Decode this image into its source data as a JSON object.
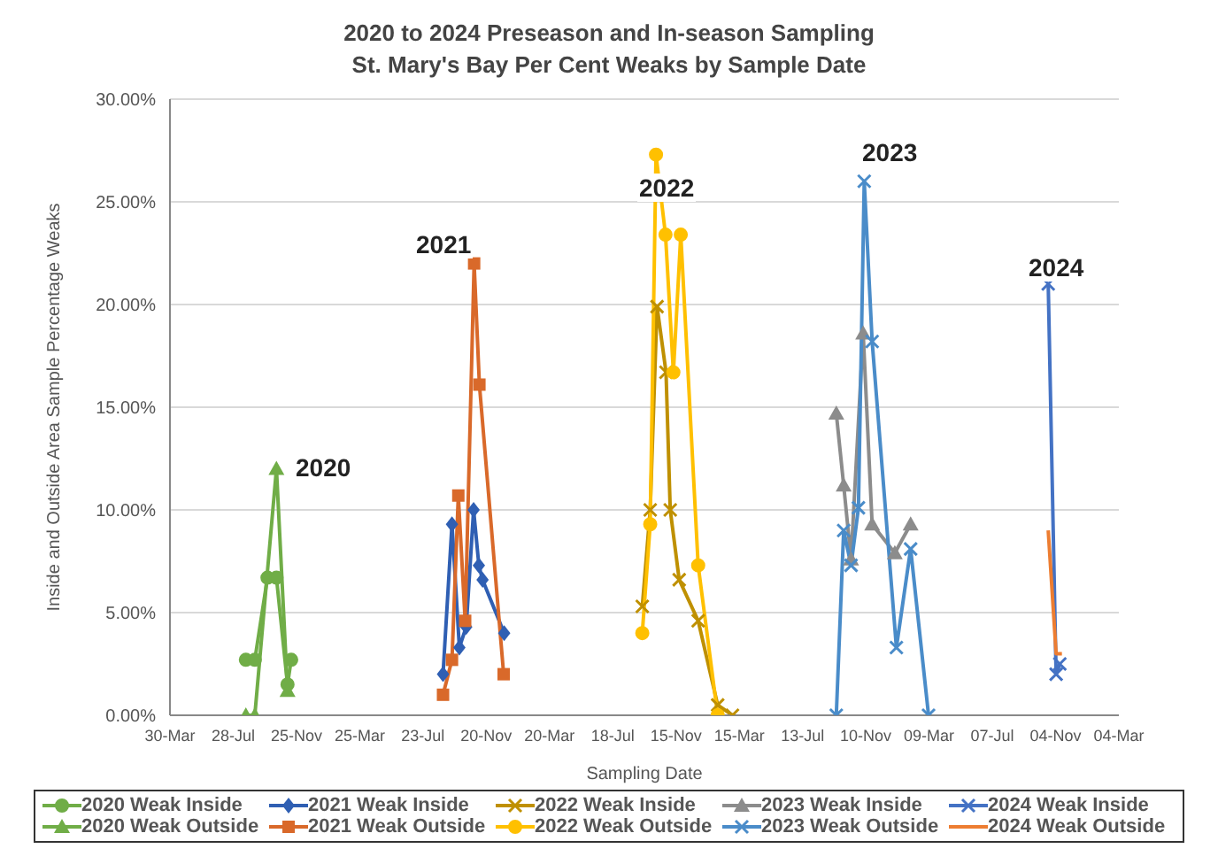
{
  "chart_data": {
    "type": "line",
    "title": "2020 to 2024 Preseason and In-season Sampling",
    "subtitle": "St. Mary's Bay Per Cent Weaks by Sample Date",
    "xlabel": "Sampling Date",
    "ylabel": "Inside and Outside Area Sample Percentage Weaks",
    "xlim": [
      "2020-03-30",
      "2025-03-04"
    ],
    "xticks": [
      {
        "value": "2020-03-30",
        "label": "30-Mar"
      },
      {
        "value": "2020-07-28",
        "label": "28-Jul"
      },
      {
        "value": "2020-11-25",
        "label": "25-Nov"
      },
      {
        "value": "2021-03-25",
        "label": "25-Mar"
      },
      {
        "value": "2021-07-23",
        "label": "23-Jul"
      },
      {
        "value": "2021-11-20",
        "label": "20-Nov"
      },
      {
        "value": "2022-03-20",
        "label": "20-Mar"
      },
      {
        "value": "2022-07-18",
        "label": "18-Jul"
      },
      {
        "value": "2022-11-15",
        "label": "15-Nov"
      },
      {
        "value": "2023-03-15",
        "label": "15-Mar"
      },
      {
        "value": "2023-07-13",
        "label": "13-Jul"
      },
      {
        "value": "2023-11-10",
        "label": "10-Nov"
      },
      {
        "value": "2024-03-09",
        "label": "09-Mar"
      },
      {
        "value": "2024-07-07",
        "label": "07-Jul"
      },
      {
        "value": "2024-11-04",
        "label": "04-Nov"
      },
      {
        "value": "2025-03-04",
        "label": "04-Mar"
      }
    ],
    "ylim": [
      0,
      30
    ],
    "yticks": [
      {
        "value": 0,
        "label": "0.00%"
      },
      {
        "value": 5,
        "label": "5.00%"
      },
      {
        "value": 10,
        "label": "10.00%"
      },
      {
        "value": 15,
        "label": "15.00%"
      },
      {
        "value": 20,
        "label": "20.00%"
      },
      {
        "value": 25,
        "label": "25.00%"
      },
      {
        "value": 30,
        "label": "30.00%"
      }
    ],
    "grid": "y",
    "legend": "bottom",
    "annotations": [
      "2020",
      "2021",
      "2022",
      "2023",
      "2024"
    ],
    "series": [
      {
        "name": "2020 Weak Inside",
        "color": "#70ad47",
        "marker": "circle",
        "x": [
          "2020-08-21",
          "2020-09-07",
          "2020-10-01",
          "2020-10-18",
          "2020-11-08",
          "2020-11-15"
        ],
        "values": [
          2.7,
          2.7,
          6.7,
          6.7,
          1.5,
          2.7
        ]
      },
      {
        "name": "2021 Weak Inside",
        "color": "#2f5fb3",
        "marker": "diamond",
        "x": [
          "2021-08-30",
          "2021-09-16",
          "2021-09-30",
          "2021-10-13",
          "2021-10-27",
          "2021-11-06",
          "2021-11-13",
          "2021-12-24"
        ],
        "values": [
          2.0,
          9.3,
          3.3,
          4.3,
          10.0,
          7.3,
          6.6,
          4.0
        ]
      },
      {
        "name": "2022 Weak Inside",
        "color": "#bf9000",
        "marker": "cross",
        "x": [
          "2022-09-12",
          "2022-09-27",
          "2022-10-10",
          "2022-10-27",
          "2022-11-04",
          "2022-11-21",
          "2022-12-27",
          "2023-02-02",
          "2023-03-02"
        ],
        "values": [
          5.3,
          10.0,
          19.9,
          16.7,
          10.0,
          6.6,
          4.6,
          0.5,
          0
        ]
      },
      {
        "name": "2023 Weak Inside",
        "color": "#8c8c8c",
        "marker": "triangle",
        "x": [
          "2023-09-15",
          "2023-09-29",
          "2023-10-13",
          "2023-11-05",
          "2023-11-22",
          "2024-01-04",
          "2024-02-03"
        ],
        "values": [
          14.7,
          11.2,
          7.6,
          18.6,
          9.3,
          7.9,
          9.3
        ]
      },
      {
        "name": "2024 Weak Inside",
        "color": "#4472c4",
        "marker": "cross",
        "x": [
          "2024-10-21",
          "2024-11-05",
          "2024-11-12"
        ],
        "values": [
          21.0,
          2.0,
          2.5
        ]
      },
      {
        "name": "2020 Weak Outside",
        "color": "#70ad47",
        "marker": "triangle",
        "x": [
          "2020-08-21",
          "2020-09-07",
          "2020-10-18",
          "2020-11-08"
        ],
        "values": [
          0,
          0,
          12.0,
          1.2
        ]
      },
      {
        "name": "2021 Weak Outside",
        "color": "#d9692a",
        "marker": "square",
        "x": [
          "2021-08-30",
          "2021-09-16",
          "2021-09-28",
          "2021-10-11",
          "2021-10-28",
          "2021-11-07",
          "2021-12-23"
        ],
        "values": [
          1.0,
          2.7,
          10.7,
          4.6,
          22.0,
          16.1,
          2.0
        ]
      },
      {
        "name": "2022 Weak Outside",
        "color": "#ffc000",
        "marker": "circle",
        "x": [
          "2022-09-12",
          "2022-09-27",
          "2022-10-08",
          "2022-10-26",
          "2022-11-10",
          "2022-11-24",
          "2022-12-27",
          "2023-02-02"
        ],
        "values": [
          4.0,
          9.3,
          27.3,
          23.4,
          16.7,
          23.4,
          7.3,
          0
        ]
      },
      {
        "name": "2023 Weak Outside",
        "color": "#4a8cc9",
        "marker": "cross",
        "x": [
          "2023-09-15",
          "2023-09-29",
          "2023-10-13",
          "2023-10-27",
          "2023-11-07",
          "2023-11-22",
          "2024-01-07",
          "2024-02-03",
          "2024-03-08"
        ],
        "values": [
          0,
          9.0,
          7.3,
          10.1,
          26.0,
          18.2,
          3.3,
          8.1,
          0
        ]
      },
      {
        "name": "2024 Weak Outside",
        "color": "#ed7d31",
        "marker": "none",
        "x": [
          "2024-10-21",
          "2024-11-05",
          "2024-11-16"
        ],
        "values": [
          9.0,
          3.0,
          3.0
        ]
      }
    ]
  }
}
